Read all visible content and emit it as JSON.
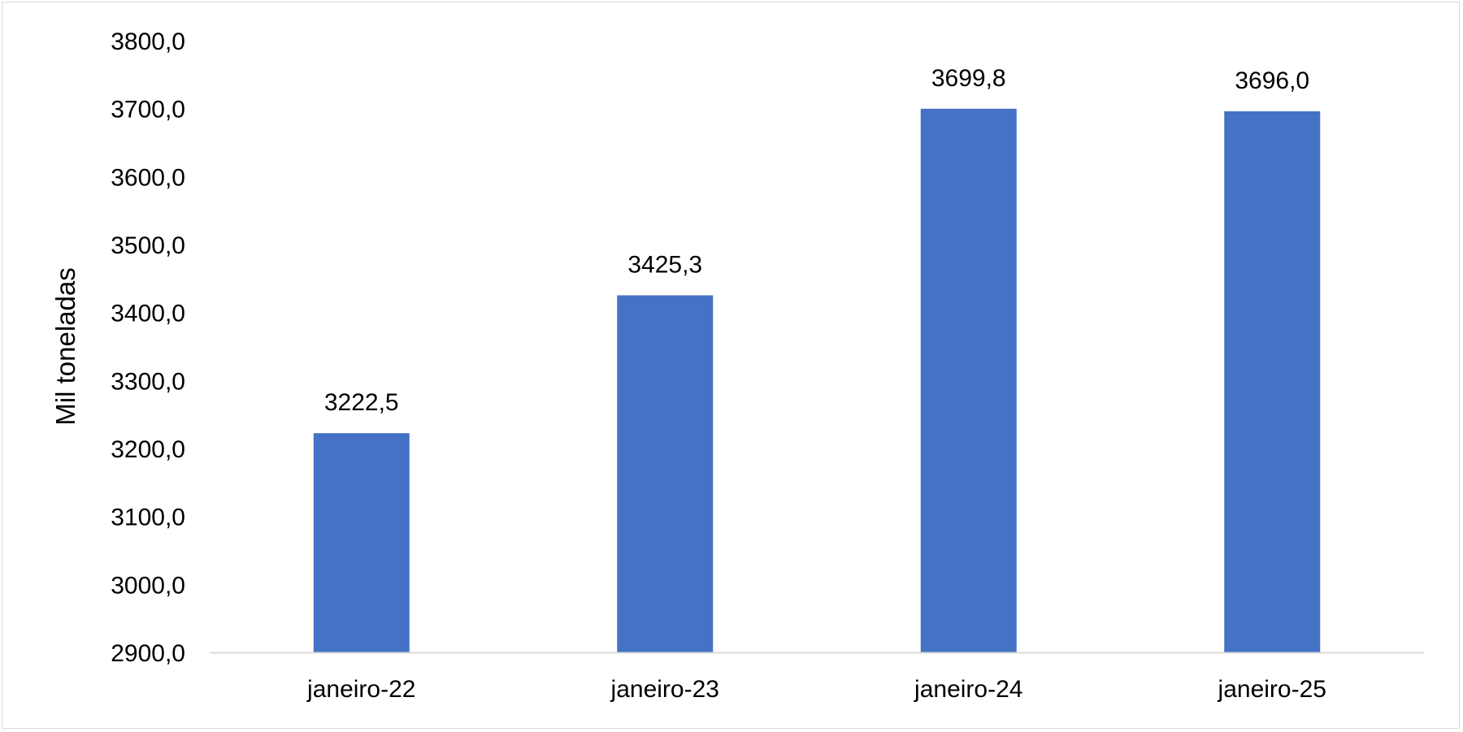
{
  "chart_data": {
    "type": "bar",
    "categories": [
      "janeiro-22",
      "janeiro-23",
      "janeiro-24",
      "janeiro-25"
    ],
    "values": [
      3222.5,
      3425.3,
      3699.8,
      3696.0
    ],
    "value_labels": [
      "3222,5",
      "3425,3",
      "3699,8",
      "3696,0"
    ],
    "ylabel": "Mil toneladas",
    "ylim": [
      2900,
      3800
    ],
    "yticks": [
      2900,
      3000,
      3100,
      3200,
      3300,
      3400,
      3500,
      3600,
      3700,
      3800
    ],
    "ytick_labels": [
      "2900,0",
      "3000,0",
      "3100,0",
      "3200,0",
      "3300,0",
      "3400,0",
      "3500,0",
      "3600,0",
      "3700,0",
      "3800,0"
    ],
    "bar_color": "#4472c4",
    "axis_color": "#d9d9d9",
    "grid": false,
    "legend": "none"
  }
}
